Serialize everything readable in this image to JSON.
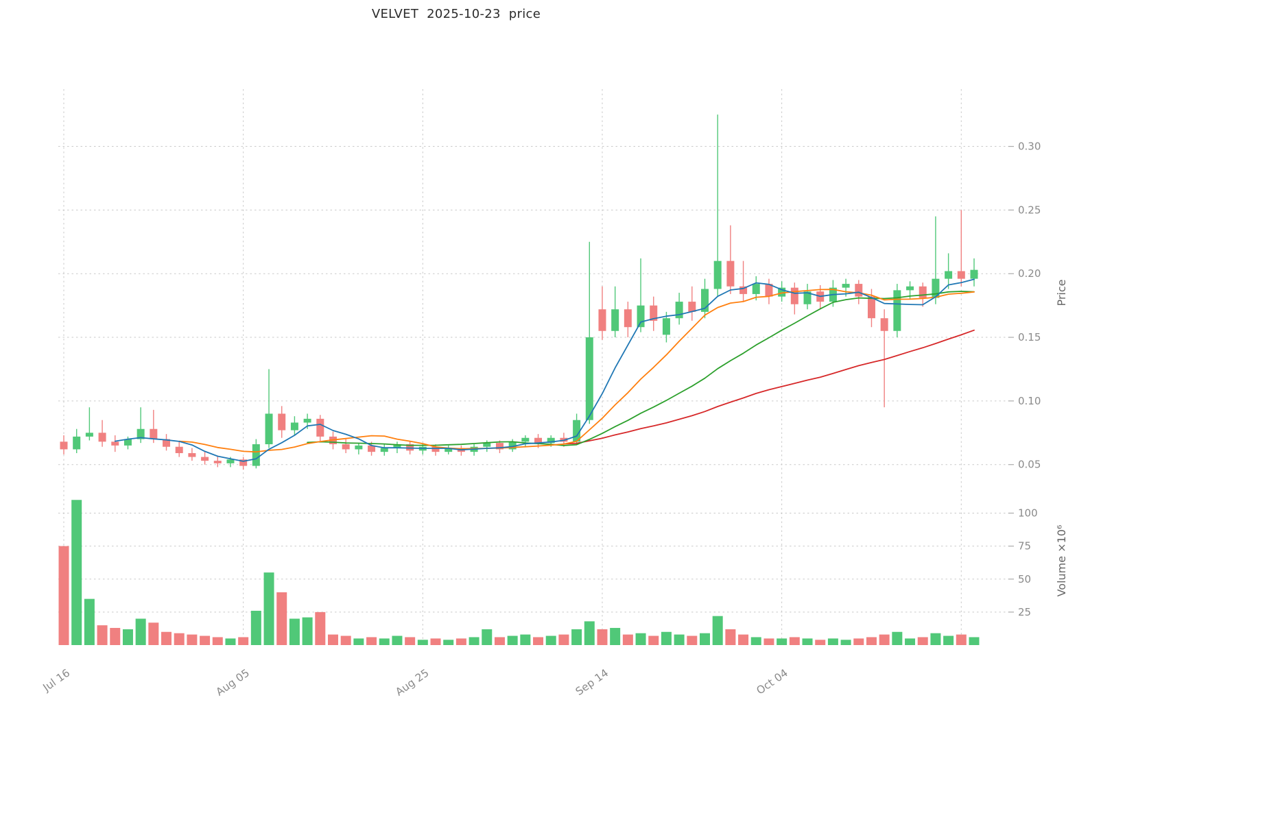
{
  "title": "VELVET  2025-10-23  price",
  "axes": {
    "price_label": "Price",
    "volume_label": "Volume ×10⁶",
    "price_ticks": [
      0.05,
      0.1,
      0.15,
      0.2,
      0.25,
      0.3
    ],
    "volume_ticks": [
      25,
      50,
      75,
      100
    ],
    "x_ticks": [
      {
        "index": 0,
        "label": "Jul 16"
      },
      {
        "index": 14,
        "label": "Aug 05"
      },
      {
        "index": 28,
        "label": "Aug 25"
      },
      {
        "index": 42,
        "label": "Sep 14"
      },
      {
        "index": 56,
        "label": "Oct 04"
      },
      {
        "index": 70,
        "label": ""
      }
    ]
  },
  "colors": {
    "up": "#50c878",
    "down": "#f08080",
    "grid": "#c9c9c9",
    "tick_mark": "#ababab",
    "tick_label": "#8a8a8a",
    "axis_label": "#666666",
    "title": "#2b2b2b",
    "background": "#ffffff"
  },
  "chart_data": {
    "type": "candlestick",
    "title": "VELVET  2025-10-23  price",
    "ylabel": "Price",
    "ylabel2": "Volume ×10⁶",
    "grid": "dashed",
    "legend": "none",
    "price_axis_range": [
      0.038,
      0.345
    ],
    "volume_axis_range_millions": [
      0,
      120
    ],
    "x_tick_labels": [
      "Jul 16",
      "Aug 05",
      "Aug 25",
      "Sep 14",
      "Oct 04"
    ],
    "moving_averages": [
      {
        "period": 5,
        "color": "#1f77b4"
      },
      {
        "period": 10,
        "color": "#ff7f0e"
      },
      {
        "period": 20,
        "color": "#2ca02c"
      },
      {
        "period": 40,
        "color": "#d62728"
      }
    ],
    "dates": [
      "2025-07-16",
      "2025-07-17",
      "2025-07-18",
      "2025-07-21",
      "2025-07-22",
      "2025-07-23",
      "2025-07-24",
      "2025-07-25",
      "2025-07-28",
      "2025-07-29",
      "2025-07-30",
      "2025-07-31",
      "2025-08-01",
      "2025-08-04",
      "2025-08-05",
      "2025-08-06",
      "2025-08-07",
      "2025-08-08",
      "2025-08-11",
      "2025-08-12",
      "2025-08-13",
      "2025-08-14",
      "2025-08-15",
      "2025-08-18",
      "2025-08-19",
      "2025-08-20",
      "2025-08-21",
      "2025-08-22",
      "2025-08-25",
      "2025-08-26",
      "2025-08-27",
      "2025-08-28",
      "2025-08-29",
      "2025-09-01",
      "2025-09-02",
      "2025-09-03",
      "2025-09-04",
      "2025-09-05",
      "2025-09-08",
      "2025-09-09",
      "2025-09-10",
      "2025-09-11",
      "2025-09-12",
      "2025-09-15",
      "2025-09-16",
      "2025-09-17",
      "2025-09-18",
      "2025-09-19",
      "2025-09-22",
      "2025-09-23",
      "2025-09-24",
      "2025-09-25",
      "2025-09-26",
      "2025-09-29",
      "2025-09-30",
      "2025-10-01",
      "2025-10-02",
      "2025-10-03",
      "2025-10-06",
      "2025-10-07",
      "2025-10-08",
      "2025-10-09",
      "2025-10-10",
      "2025-10-13",
      "2025-10-14",
      "2025-10-15",
      "2025-10-16",
      "2025-10-17",
      "2025-10-20",
      "2025-10-21",
      "2025-10-22",
      "2025-10-23"
    ],
    "open": [
      0.068,
      0.062,
      0.072,
      0.075,
      0.068,
      0.065,
      0.07,
      0.078,
      0.07,
      0.064,
      0.059,
      0.056,
      0.053,
      0.051,
      0.054,
      0.049,
      0.066,
      0.09,
      0.077,
      0.083,
      0.086,
      0.072,
      0.066,
      0.062,
      0.065,
      0.06,
      0.063,
      0.066,
      0.061,
      0.064,
      0.06,
      0.063,
      0.06,
      0.064,
      0.067,
      0.062,
      0.068,
      0.071,
      0.067,
      0.071,
      0.068,
      0.085,
      0.172,
      0.155,
      0.172,
      0.158,
      0.175,
      0.152,
      0.165,
      0.178,
      0.17,
      0.188,
      0.21,
      0.19,
      0.184,
      0.192,
      0.182,
      0.189,
      0.176,
      0.186,
      0.178,
      0.189,
      0.192,
      0.182,
      0.165,
      0.155,
      0.187,
      0.19,
      0.181,
      0.196,
      0.202,
      0.196
    ],
    "high": [
      0.073,
      0.078,
      0.095,
      0.085,
      0.073,
      0.072,
      0.095,
      0.093,
      0.074,
      0.068,
      0.063,
      0.06,
      0.057,
      0.056,
      0.056,
      0.07,
      0.125,
      0.096,
      0.088,
      0.09,
      0.089,
      0.076,
      0.07,
      0.067,
      0.068,
      0.066,
      0.068,
      0.068,
      0.066,
      0.066,
      0.065,
      0.065,
      0.066,
      0.069,
      0.069,
      0.07,
      0.073,
      0.074,
      0.073,
      0.075,
      0.09,
      0.225,
      0.19,
      0.19,
      0.178,
      0.212,
      0.182,
      0.17,
      0.185,
      0.19,
      0.196,
      0.325,
      0.238,
      0.21,
      0.198,
      0.196,
      0.194,
      0.193,
      0.192,
      0.191,
      0.195,
      0.196,
      0.195,
      0.188,
      0.172,
      0.192,
      0.194,
      0.193,
      0.245,
      0.216,
      0.25,
      0.212
    ],
    "low": [
      0.058,
      0.059,
      0.069,
      0.064,
      0.06,
      0.062,
      0.067,
      0.067,
      0.061,
      0.056,
      0.053,
      0.05,
      0.048,
      0.048,
      0.046,
      0.047,
      0.063,
      0.071,
      0.073,
      0.078,
      0.068,
      0.062,
      0.059,
      0.058,
      0.057,
      0.057,
      0.059,
      0.058,
      0.058,
      0.057,
      0.058,
      0.057,
      0.057,
      0.06,
      0.059,
      0.06,
      0.064,
      0.063,
      0.064,
      0.064,
      0.066,
      0.082,
      0.148,
      0.15,
      0.15,
      0.154,
      0.155,
      0.146,
      0.16,
      0.163,
      0.165,
      0.182,
      0.184,
      0.178,
      0.179,
      0.176,
      0.178,
      0.168,
      0.172,
      0.172,
      0.174,
      0.182,
      0.176,
      0.158,
      0.095,
      0.15,
      0.18,
      0.174,
      0.176,
      0.188,
      0.19,
      0.19
    ],
    "close": [
      0.062,
      0.072,
      0.075,
      0.068,
      0.065,
      0.07,
      0.078,
      0.07,
      0.064,
      0.059,
      0.056,
      0.053,
      0.051,
      0.054,
      0.049,
      0.066,
      0.09,
      0.077,
      0.083,
      0.086,
      0.072,
      0.066,
      0.062,
      0.065,
      0.06,
      0.063,
      0.066,
      0.061,
      0.064,
      0.06,
      0.063,
      0.06,
      0.064,
      0.067,
      0.062,
      0.068,
      0.071,
      0.067,
      0.071,
      0.068,
      0.085,
      0.15,
      0.155,
      0.172,
      0.158,
      0.175,
      0.163,
      0.165,
      0.178,
      0.17,
      0.188,
      0.21,
      0.19,
      0.184,
      0.192,
      0.182,
      0.189,
      0.176,
      0.186,
      0.178,
      0.189,
      0.192,
      0.182,
      0.165,
      0.155,
      0.187,
      0.19,
      0.181,
      0.196,
      0.202,
      0.196,
      0.203
    ],
    "volume_millions": [
      75,
      110,
      35,
      15,
      13,
      12,
      20,
      17,
      10,
      9,
      8,
      7,
      6,
      5,
      6,
      26,
      55,
      40,
      20,
      21,
      25,
      8,
      7,
      5,
      6,
      5,
      7,
      6,
      4,
      5,
      4,
      5,
      6,
      12,
      6,
      7,
      8,
      6,
      7,
      8,
      12,
      18,
      12,
      13,
      8,
      9,
      7,
      10,
      8,
      7,
      9,
      22,
      12,
      8,
      6,
      5,
      5,
      6,
      5,
      4,
      5,
      4,
      5,
      6,
      8,
      10,
      5,
      6,
      9,
      7,
      8,
      6
    ]
  }
}
